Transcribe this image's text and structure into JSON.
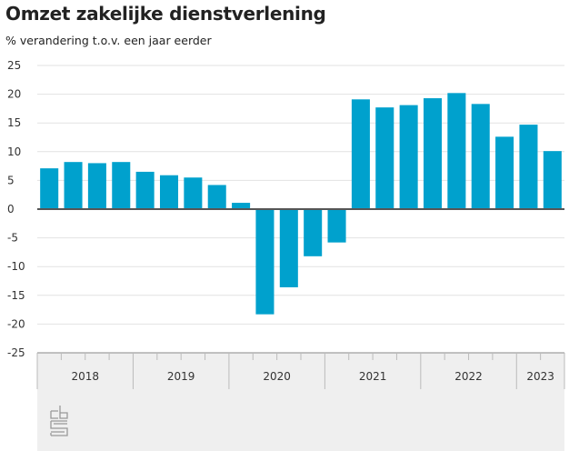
{
  "chart_data": {
    "type": "bar",
    "title": "Omzet zakelijke dienstverlening",
    "subtitle": "% verandering t.o.v. een jaar eerder",
    "xlabel": "",
    "ylabel": "% verandering t.o.v. een jaar eerder",
    "ylim": [
      -25,
      25
    ],
    "yticks": [
      25,
      20,
      15,
      10,
      5,
      0,
      -5,
      -10,
      -15,
      -20,
      -25
    ],
    "ytick_labels": [
      "25",
      "20",
      "15",
      "10",
      "5",
      "0",
      "-5",
      "-10",
      "-15",
      "-20",
      "-25"
    ],
    "grid": true,
    "categories": [
      "2018 Q1",
      "2018 Q2",
      "2018 Q3",
      "2018 Q4",
      "2019 Q1",
      "2019 Q2",
      "2019 Q3",
      "2019 Q4",
      "2020 Q1",
      "2020 Q2",
      "2020 Q3",
      "2020 Q4",
      "2021 Q1",
      "2021 Q2",
      "2021 Q3",
      "2021 Q4",
      "2022 Q1",
      "2022 Q2",
      "2022 Q3",
      "2022 Q4",
      "2023 Q1",
      "2023 Q2"
    ],
    "values": [
      7.1,
      8.2,
      8.0,
      8.2,
      6.5,
      5.9,
      5.5,
      4.2,
      1.1,
      -18.3,
      -13.6,
      -8.2,
      -5.8,
      19.1,
      17.7,
      18.1,
      19.3,
      20.2,
      18.3,
      12.6,
      14.7,
      10.1
    ],
    "years": [
      {
        "label": "2018",
        "quarters": 4
      },
      {
        "label": "2019",
        "quarters": 4
      },
      {
        "label": "2020",
        "quarters": 4
      },
      {
        "label": "2021",
        "quarters": 4
      },
      {
        "label": "2022",
        "quarters": 4
      },
      {
        "label": "2023",
        "quarters": 2
      }
    ],
    "bar_color": "#00a1cd"
  },
  "logo": "cbs"
}
